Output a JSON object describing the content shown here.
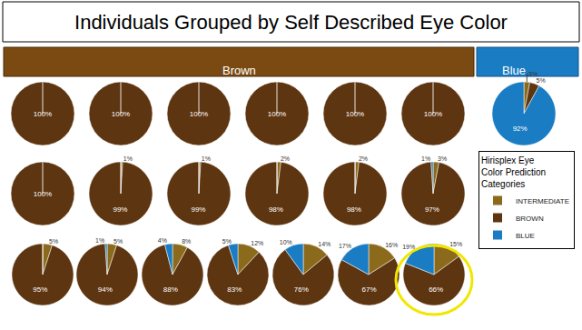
{
  "chart_data": {
    "type": "pie",
    "title": "Individuals Grouped by Self Described Eye Color",
    "legend_title": "Hirisplex Eye Color Prediction Categories",
    "categories": [
      "INTERMEDIATE",
      "BROWN",
      "BLUE"
    ],
    "colors": [
      "#8c6a1c",
      "#5e3511",
      "#1a7cc2"
    ],
    "legend": "right",
    "data_labels": true,
    "groups": [
      {
        "name": "Brown",
        "color": "#7b4a12",
        "pies": [
          {
            "values": [
              null,
              100,
              null
            ],
            "value_labels": [
              null,
              "100%",
              null
            ]
          },
          {
            "values": [
              null,
              100,
              null
            ],
            "value_labels": [
              null,
              "100%",
              null
            ]
          },
          {
            "values": [
              null,
              100,
              null
            ],
            "value_labels": [
              null,
              "100%",
              null
            ]
          },
          {
            "values": [
              null,
              100,
              null
            ],
            "value_labels": [
              null,
              "100%",
              null
            ]
          },
          {
            "values": [
              null,
              100,
              null
            ],
            "value_labels": [
              null,
              "100%",
              null
            ]
          },
          {
            "values": [
              null,
              100,
              null
            ],
            "value_labels": [
              null,
              "100%",
              null
            ]
          },
          {
            "values": [
              null,
              100,
              null
            ],
            "value_labels": [
              null,
              "100%",
              null
            ]
          },
          {
            "values": [
              1,
              99,
              null
            ],
            "value_labels": [
              "1%",
              "99%",
              null
            ]
          },
          {
            "values": [
              1,
              99,
              null
            ],
            "value_labels": [
              "1%",
              "99%",
              null
            ]
          },
          {
            "values": [
              2,
              98,
              null
            ],
            "value_labels": [
              "2%",
              "98%",
              null
            ]
          },
          {
            "values": [
              2,
              98,
              null
            ],
            "value_labels": [
              "2%",
              "98%",
              null
            ]
          },
          {
            "values": [
              3,
              97,
              1
            ],
            "value_labels": [
              "3%",
              "97%",
              "1%"
            ]
          },
          {
            "values": [
              5,
              95,
              null
            ],
            "value_labels": [
              "5%",
              "95%",
              null
            ]
          },
          {
            "values": [
              5,
              94,
              1
            ],
            "value_labels": [
              "5%",
              "94%",
              "1%"
            ]
          },
          {
            "values": [
              8,
              88,
              4
            ],
            "value_labels": [
              "8%",
              "88%",
              "4%"
            ]
          },
          {
            "values": [
              12,
              83,
              5
            ],
            "value_labels": [
              "12%",
              "83%",
              "5%"
            ]
          },
          {
            "values": [
              14,
              76,
              10
            ],
            "value_labels": [
              "14%",
              "76%",
              "10%"
            ]
          },
          {
            "values": [
              16,
              67,
              17
            ],
            "value_labels": [
              "16%",
              "67%",
              "17%"
            ]
          },
          {
            "values": [
              15,
              66,
              19
            ],
            "value_labels": [
              "15%",
              "66%",
              "19%"
            ]
          }
        ]
      },
      {
        "name": "Blue",
        "color": "#1a7cc2",
        "pies": [
          {
            "values": [
              3,
              5,
              92
            ],
            "value_labels": [
              "3%",
              "5%",
              "92%"
            ]
          }
        ]
      }
    ]
  }
}
